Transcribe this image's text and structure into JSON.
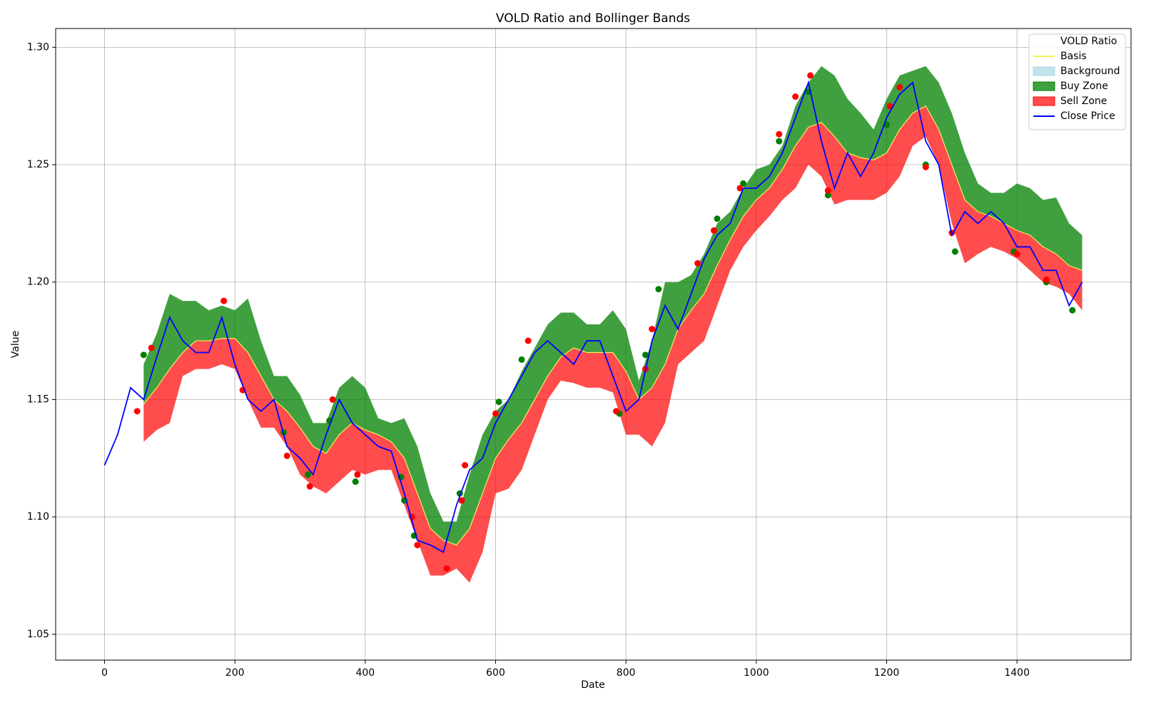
{
  "chart_data": {
    "type": "line",
    "title": "VOLD Ratio and Bollinger Bands",
    "xlabel": "Date",
    "ylabel": "Value",
    "xlim": [
      -75,
      1575
    ],
    "ylim": [
      1.039,
      1.308
    ],
    "xticks": [
      0,
      200,
      400,
      600,
      800,
      1000,
      1200,
      1400
    ],
    "yticks": [
      1.05,
      {
        "value": 1.1,
        "label": "1.10"
      },
      1.15,
      {
        "value": 1.2,
        "label": "1.20"
      },
      1.25,
      {
        "value": 1.3,
        "label": "1.30"
      }
    ],
    "grid": true,
    "legend": "upper right",
    "x": [
      0,
      20,
      40,
      60,
      80,
      100,
      120,
      140,
      160,
      180,
      200,
      220,
      240,
      260,
      280,
      300,
      320,
      340,
      360,
      380,
      400,
      420,
      440,
      460,
      480,
      500,
      520,
      540,
      560,
      580,
      600,
      620,
      640,
      660,
      680,
      700,
      720,
      740,
      760,
      780,
      800,
      820,
      840,
      860,
      880,
      900,
      920,
      940,
      960,
      980,
      1000,
      1020,
      1040,
      1060,
      1080,
      1100,
      1120,
      1140,
      1160,
      1180,
      1200,
      1220,
      1240,
      1260,
      1280,
      1300,
      1320,
      1340,
      1360,
      1380,
      1400,
      1420,
      1440,
      1460,
      1480,
      1500
    ],
    "series": [
      {
        "name": "VOLD Ratio"
      },
      {
        "name": "Basis",
        "kind": "line",
        "color": "#f3ef5a",
        "values": [
          null,
          null,
          null,
          1.148,
          1.155,
          1.163,
          1.17,
          1.175,
          1.175,
          1.176,
          1.176,
          1.17,
          1.16,
          1.15,
          1.145,
          1.138,
          1.13,
          1.127,
          1.135,
          1.14,
          1.137,
          1.135,
          1.132,
          1.125,
          1.11,
          1.095,
          1.09,
          1.088,
          1.095,
          1.11,
          1.125,
          1.133,
          1.14,
          1.15,
          1.16,
          1.168,
          1.172,
          1.17,
          1.17,
          1.17,
          1.162,
          1.15,
          1.155,
          1.165,
          1.18,
          1.188,
          1.195,
          1.207,
          1.218,
          1.228,
          1.235,
          1.24,
          1.248,
          1.258,
          1.266,
          1.268,
          1.262,
          1.255,
          1.253,
          1.252,
          1.255,
          1.265,
          1.272,
          1.275,
          1.265,
          1.25,
          1.235,
          1.23,
          1.228,
          1.225,
          1.222,
          1.22,
          1.215,
          1.212,
          1.207,
          1.205
        ]
      },
      {
        "name": "Background",
        "color": "#add8e6"
      },
      {
        "name": "Buy Zone",
        "kind": "band",
        "fill_to": 1,
        "color": "#008000",
        "opacity": 0.75,
        "values": [
          null,
          null,
          null,
          1.165,
          1.178,
          1.195,
          1.192,
          1.192,
          1.188,
          1.19,
          1.188,
          1.193,
          1.175,
          1.16,
          1.16,
          1.152,
          1.14,
          1.14,
          1.155,
          1.16,
          1.155,
          1.142,
          1.14,
          1.142,
          1.13,
          1.11,
          1.098,
          1.098,
          1.118,
          1.135,
          1.145,
          1.15,
          1.162,
          1.172,
          1.182,
          1.187,
          1.187,
          1.182,
          1.182,
          1.188,
          1.18,
          1.158,
          1.175,
          1.2,
          1.2,
          1.203,
          1.212,
          1.225,
          1.23,
          1.24,
          1.248,
          1.25,
          1.258,
          1.275,
          1.285,
          1.292,
          1.288,
          1.278,
          1.272,
          1.265,
          1.278,
          1.288,
          1.29,
          1.292,
          1.285,
          1.272,
          1.255,
          1.242,
          1.238,
          1.238,
          1.242,
          1.24,
          1.235,
          1.236,
          1.225,
          1.22
        ]
      },
      {
        "name": "Sell Zone",
        "kind": "band",
        "fill_to": 1,
        "color": "#ff0000",
        "opacity": 0.7,
        "values": [
          null,
          null,
          null,
          1.132,
          1.137,
          1.14,
          1.16,
          1.163,
          1.163,
          1.165,
          1.163,
          1.15,
          1.138,
          1.138,
          1.13,
          1.118,
          1.113,
          1.11,
          1.115,
          1.12,
          1.118,
          1.12,
          1.12,
          1.105,
          1.09,
          1.075,
          1.075,
          1.078,
          1.072,
          1.085,
          1.11,
          1.112,
          1.12,
          1.135,
          1.15,
          1.158,
          1.157,
          1.155,
          1.155,
          1.153,
          1.135,
          1.135,
          1.13,
          1.14,
          1.165,
          1.17,
          1.175,
          1.19,
          1.205,
          1.215,
          1.222,
          1.228,
          1.235,
          1.24,
          1.25,
          1.245,
          1.233,
          1.235,
          1.235,
          1.235,
          1.238,
          1.245,
          1.258,
          1.262,
          1.25,
          1.225,
          1.208,
          1.212,
          1.215,
          1.213,
          1.21,
          1.205,
          1.2,
          1.198,
          1.195,
          1.188
        ]
      },
      {
        "name": "Close Price",
        "kind": "line",
        "color": "#0000ff",
        "values": [
          1.122,
          1.135,
          1.155,
          1.15,
          1.168,
          1.185,
          1.175,
          1.17,
          1.17,
          1.185,
          1.165,
          1.15,
          1.145,
          1.15,
          1.13,
          1.125,
          1.118,
          1.135,
          1.15,
          1.14,
          1.135,
          1.13,
          1.128,
          1.11,
          1.09,
          1.088,
          1.085,
          1.105,
          1.12,
          1.125,
          1.14,
          1.15,
          1.16,
          1.17,
          1.175,
          1.17,
          1.165,
          1.175,
          1.175,
          1.16,
          1.145,
          1.15,
          1.175,
          1.19,
          1.18,
          1.195,
          1.21,
          1.22,
          1.225,
          1.24,
          1.24,
          1.245,
          1.255,
          1.27,
          1.285,
          1.26,
          1.24,
          1.255,
          1.245,
          1.255,
          1.27,
          1.28,
          1.285,
          1.26,
          1.25,
          1.22,
          1.23,
          1.225,
          1.23,
          1.225,
          1.215,
          1.215,
          1.205,
          1.205,
          1.19,
          1.2
        ]
      }
    ],
    "buy_signals": {
      "color": "#008000",
      "x": [
        60,
        275,
        312,
        345,
        385,
        455,
        460,
        475,
        545,
        605,
        640,
        790,
        830,
        850,
        940,
        980,
        1035,
        1080,
        1110,
        1200,
        1260,
        1305,
        1395,
        1445,
        1485
      ],
      "values": [
        1.169,
        1.136,
        1.118,
        1.141,
        1.115,
        1.117,
        1.107,
        1.092,
        1.11,
        1.149,
        1.167,
        1.144,
        1.169,
        1.197,
        1.227,
        1.242,
        1.26,
        1.281,
        1.237,
        1.267,
        1.25,
        1.213,
        1.213,
        1.2,
        1.188
      ]
    },
    "sell_signals": {
      "color": "#ff0000",
      "x": [
        50,
        72,
        183,
        212,
        280,
        315,
        350,
        388,
        472,
        480,
        525,
        548,
        553,
        600,
        650,
        785,
        830,
        840,
        910,
        935,
        975,
        1035,
        1060,
        1083,
        1110,
        1205,
        1220,
        1260,
        1300,
        1400,
        1445
      ],
      "values": [
        1.145,
        1.172,
        1.192,
        1.154,
        1.126,
        1.113,
        1.15,
        1.118,
        1.1,
        1.088,
        1.078,
        1.107,
        1.122,
        1.144,
        1.175,
        1.145,
        1.163,
        1.18,
        1.208,
        1.222,
        1.24,
        1.263,
        1.279,
        1.288,
        1.239,
        1.275,
        1.283,
        1.249,
        1.221,
        1.212,
        1.201
      ]
    }
  }
}
